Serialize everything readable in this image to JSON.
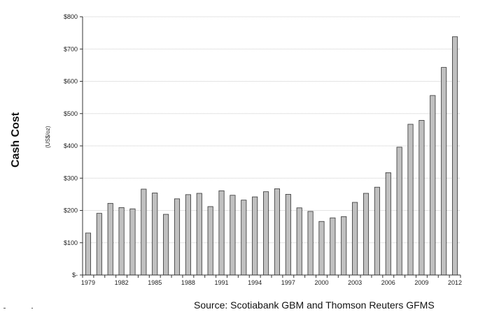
{
  "chart_data": {
    "type": "bar",
    "ylabel": "Cash Cost",
    "yunit": "(US$/oz)",
    "ylim": [
      0,
      800
    ],
    "yticks": [
      0,
      100,
      200,
      300,
      400,
      500,
      600,
      700,
      800
    ],
    "ytick_labels": [
      "$-",
      "$100",
      "$200",
      "$300",
      "$400",
      "$500",
      "$600",
      "$700",
      "$800"
    ],
    "xtick_labels": [
      "1979",
      "1982",
      "1985",
      "1988",
      "1991",
      "1994",
      "1997",
      "2000",
      "2003",
      "2006",
      "2009",
      "2012"
    ],
    "grid": true,
    "bar_color": "#c0c0c0",
    "categories": [
      "1979",
      "1980",
      "1981",
      "1982",
      "1983",
      "1984",
      "1985",
      "1986",
      "1987",
      "1988",
      "1989",
      "1990",
      "1991",
      "1992",
      "1993",
      "1994",
      "1995",
      "1996",
      "1997",
      "1998",
      "1999",
      "2000",
      "2001",
      "2002",
      "2003",
      "2004",
      "2005",
      "2006",
      "2007",
      "2008",
      "2009",
      "2010",
      "2011",
      "2012"
    ],
    "values": [
      130,
      191,
      222,
      209,
      205,
      266,
      254,
      188,
      236,
      249,
      253,
      212,
      261,
      247,
      232,
      242,
      258,
      267,
      250,
      208,
      197,
      166,
      177,
      181,
      225,
      253,
      272,
      317,
      396,
      467,
      479,
      556,
      643,
      738
    ]
  },
  "source_text": "Source: Scotiabank GBM and Thomson Reuters GFMS"
}
